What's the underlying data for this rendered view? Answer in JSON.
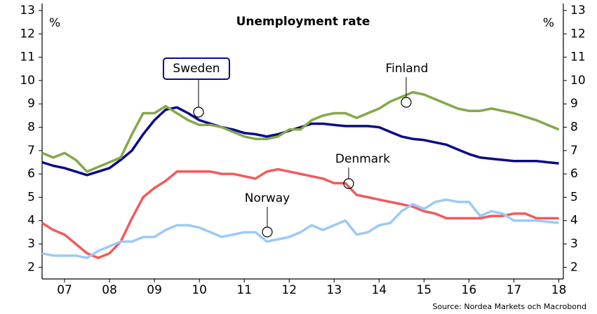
{
  "chart_data": {
    "type": "line",
    "title": "Unemployment rate",
    "y_unit_left": "%",
    "y_unit_right": "%",
    "source": "Source: Nordea Markets och Macrobond",
    "xlim": [
      2007,
      2018.6
    ],
    "xticks": [
      {
        "value": 2007.5,
        "label": "07"
      },
      {
        "value": 2008.5,
        "label": "08"
      },
      {
        "value": 2009.5,
        "label": "09"
      },
      {
        "value": 2010.5,
        "label": "10"
      },
      {
        "value": 2011.5,
        "label": "11"
      },
      {
        "value": 2012.5,
        "label": "12"
      },
      {
        "value": 2013.5,
        "label": "13"
      },
      {
        "value": 2014.5,
        "label": "14"
      },
      {
        "value": 2015.5,
        "label": "15"
      },
      {
        "value": 2016.5,
        "label": "16"
      },
      {
        "value": 2017.5,
        "label": "17"
      },
      {
        "value": 2018.5,
        "label": "18"
      }
    ],
    "ylim": [
      1.5,
      13.3
    ],
    "yticks": [
      2,
      3,
      4,
      5,
      6,
      7,
      8,
      9,
      10,
      11,
      12,
      13
    ],
    "x": [
      2007,
      2007.25,
      2007.5,
      2007.75,
      2008,
      2008.25,
      2008.5,
      2008.75,
      2009,
      2009.25,
      2009.5,
      2009.75,
      2010,
      2010.25,
      2010.5,
      2010.75,
      2011,
      2011.25,
      2011.5,
      2011.75,
      2012,
      2012.25,
      2012.5,
      2012.75,
      2013,
      2013.25,
      2013.5,
      2013.75,
      2014,
      2014.25,
      2014.5,
      2014.75,
      2015,
      2015.25,
      2015.5,
      2015.75,
      2016,
      2016.25,
      2016.5,
      2016.75,
      2017,
      2017.25,
      2017.5,
      2017.75,
      2018,
      2018.25,
      2018.5
    ],
    "series": [
      {
        "name": "Sweden",
        "color": "#0a0a8c",
        "label_box": true,
        "values": [
          6.5,
          6.35,
          6.25,
          6.1,
          5.95,
          6.1,
          6.25,
          6.6,
          7.0,
          7.7,
          8.3,
          8.75,
          8.85,
          8.6,
          8.3,
          8.15,
          8.0,
          7.9,
          7.75,
          7.7,
          7.6,
          7.7,
          7.85,
          8.0,
          8.15,
          8.15,
          8.1,
          8.05,
          8.05,
          8.05,
          8.0,
          7.8,
          7.6,
          7.5,
          7.45,
          7.35,
          7.25,
          7.05,
          6.85,
          6.7,
          6.65,
          6.6,
          6.55,
          6.55,
          6.55,
          6.5,
          6.45
        ]
      },
      {
        "name": "Finland",
        "color": "#84a84a",
        "values": [
          6.9,
          6.7,
          6.9,
          6.6,
          6.1,
          6.3,
          6.5,
          6.7,
          7.7,
          8.6,
          8.6,
          8.9,
          8.6,
          8.3,
          8.1,
          8.1,
          8.0,
          7.8,
          7.6,
          7.5,
          7.5,
          7.6,
          7.9,
          7.9,
          8.3,
          8.5,
          8.6,
          8.6,
          8.4,
          8.6,
          8.8,
          9.1,
          9.3,
          9.5,
          9.4,
          9.2,
          9.0,
          8.8,
          8.7,
          8.7,
          8.8,
          8.7,
          8.6,
          8.45,
          8.3,
          8.1,
          7.9
        ]
      },
      {
        "name": "Denmark",
        "color": "#f25a5a",
        "values": [
          3.9,
          3.6,
          3.4,
          3.0,
          2.6,
          2.4,
          2.6,
          3.1,
          4.1,
          5.0,
          5.4,
          5.7,
          6.1,
          6.1,
          6.1,
          6.1,
          6.0,
          6.0,
          5.9,
          5.8,
          6.1,
          6.2,
          6.1,
          6.0,
          5.9,
          5.8,
          5.6,
          5.6,
          5.1,
          5.0,
          4.9,
          4.8,
          4.7,
          4.6,
          4.4,
          4.3,
          4.1,
          4.1,
          4.1,
          4.1,
          4.2,
          4.2,
          4.3,
          4.3,
          4.1,
          4.1,
          4.1
        ]
      },
      {
        "name": "Norway",
        "color": "#9ccaf5",
        "values": [
          2.6,
          2.5,
          2.5,
          2.5,
          2.4,
          2.7,
          2.9,
          3.1,
          3.1,
          3.3,
          3.3,
          3.6,
          3.8,
          3.8,
          3.7,
          3.5,
          3.3,
          3.4,
          3.5,
          3.5,
          3.1,
          3.2,
          3.3,
          3.5,
          3.8,
          3.6,
          3.8,
          4.0,
          3.4,
          3.5,
          3.8,
          3.9,
          4.4,
          4.7,
          4.5,
          4.8,
          4.9,
          4.8,
          4.8,
          4.2,
          4.4,
          4.3,
          4.0,
          4.0,
          4.0,
          3.95,
          3.9
        ]
      }
    ]
  }
}
